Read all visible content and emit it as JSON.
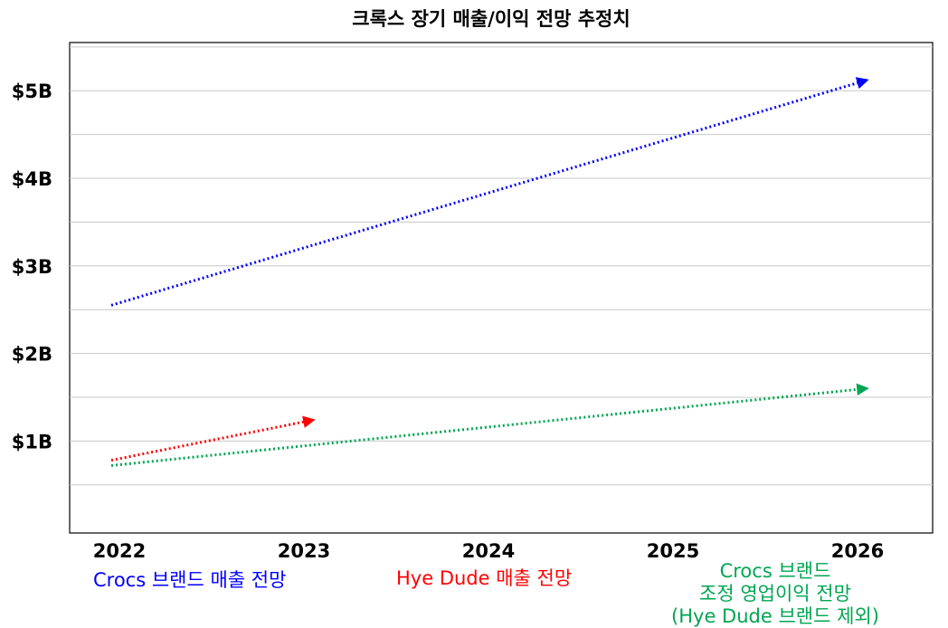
{
  "chart_data": {
    "type": "line",
    "title": "크록스 장기 매출/이익 전망 추정치",
    "x_categories": [
      "2022",
      "2023",
      "2024",
      "2025",
      "2026"
    ],
    "y_ticks": [
      {
        "value": 1,
        "label": "$1B"
      },
      {
        "value": 2,
        "label": "$2B"
      },
      {
        "value": 3,
        "label": "$3B"
      },
      {
        "value": 4,
        "label": "$4B"
      },
      {
        "value": 5,
        "label": "$5B"
      }
    ],
    "ylim": [
      -0.05,
      5.55
    ],
    "grid": true,
    "series": [
      {
        "name": "Crocs 브랜드 매출 전망",
        "color": "#0000ff",
        "style": "dotted-arrow",
        "points": [
          {
            "x": 2022,
            "y": 2.55
          },
          {
            "x": 2026,
            "y": 5.12
          }
        ]
      },
      {
        "name": "Hye Dude 매출 전망",
        "color": "#ff0000",
        "style": "dotted-arrow",
        "points": [
          {
            "x": 2022,
            "y": 0.78
          },
          {
            "x": 2023,
            "y": 1.24
          }
        ]
      },
      {
        "name": "Crocs 브랜드 조정 영업이익 전망 (Hye Dude 브랜드 제외)",
        "color": "#00a651",
        "style": "dotted-arrow",
        "points": [
          {
            "x": 2022,
            "y": 0.72
          },
          {
            "x": 2026,
            "y": 1.6
          }
        ]
      }
    ]
  },
  "legend": {
    "blue": "Crocs 브랜드 매출 전망",
    "red": "Hye Dude 매출 전망",
    "green_line1": "Crocs 브랜드",
    "green_line2": "조정 영업이익 전망",
    "green_line3": "(Hye Dude 브랜드 제외)"
  }
}
